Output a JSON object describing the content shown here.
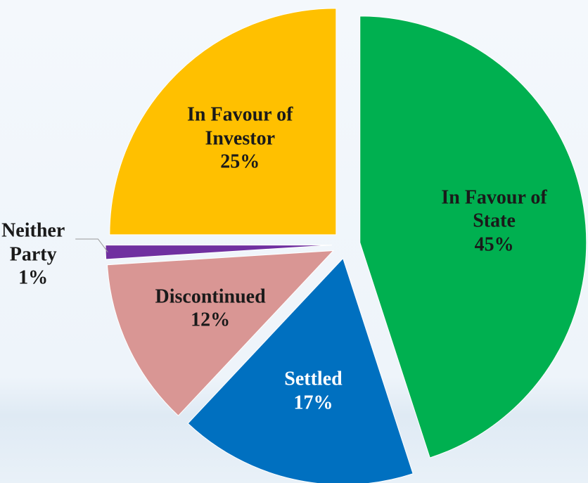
{
  "chart_data": {
    "type": "pie",
    "categories": [
      "In Favour of State",
      "Settled",
      "Discontinued",
      "Neither Party",
      "In Favour of Investor"
    ],
    "values": [
      45,
      17,
      12,
      1,
      25
    ],
    "value_labels": [
      "45%",
      "17%",
      "12%",
      "1%",
      "25%"
    ],
    "colors": [
      "#00b050",
      "#0070c0",
      "#d99694",
      "#7030a0",
      "#ffc000"
    ]
  }
}
